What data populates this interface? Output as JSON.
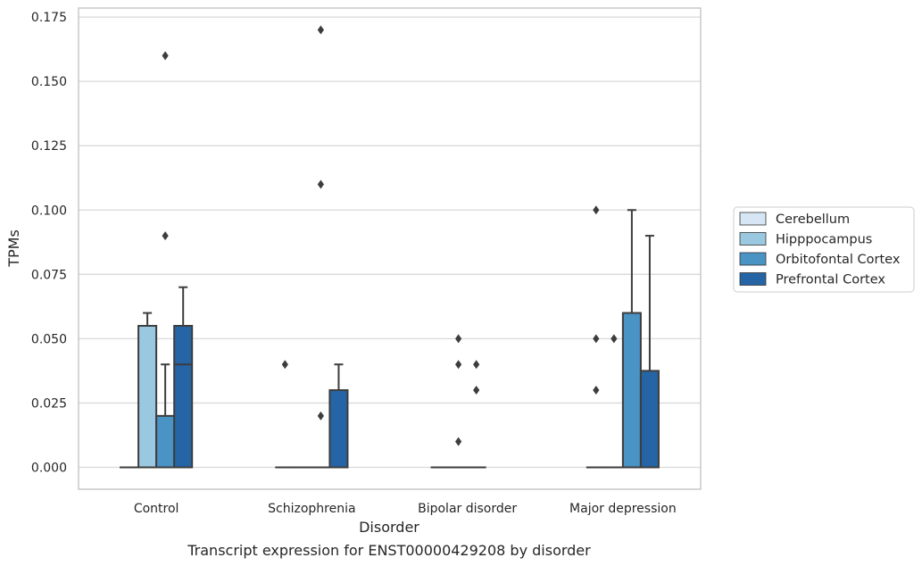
{
  "chart_data": {
    "type": "boxplot",
    "title": "",
    "xlabel": "Disorder",
    "ylabel": "TPMs",
    "caption": "Transcript expression for ENST00000429208 by disorder",
    "ylim": [
      -0.0085,
      0.1785
    ],
    "yticks": [
      "0.000",
      "0.025",
      "0.050",
      "0.075",
      "0.100",
      "0.125",
      "0.150",
      "0.175"
    ],
    "categories": [
      "Control",
      "Schizophrenia",
      "Bipolar disorder",
      "Major depression"
    ],
    "grid": "horizontal",
    "legend_position": "right",
    "series": [
      {
        "name": "Cerebellum",
        "color": "#d6e6f4",
        "boxes": [
          {
            "q1": 0,
            "median": 0,
            "q3": 0,
            "whisker_low": 0,
            "whisker_high": 0,
            "outliers": []
          },
          {
            "q1": 0,
            "median": 0,
            "q3": 0,
            "whisker_low": 0,
            "whisker_high": 0,
            "outliers": [
              0.04
            ]
          },
          {
            "q1": 0,
            "median": 0,
            "q3": 0,
            "whisker_low": 0,
            "whisker_high": 0,
            "outliers": []
          },
          {
            "q1": 0,
            "median": 0,
            "q3": 0,
            "whisker_low": 0,
            "whisker_high": 0,
            "outliers": [
              0.03,
              0.05,
              0.1
            ]
          }
        ]
      },
      {
        "name": "Hipppocampus",
        "color": "#9ac8e0",
        "boxes": [
          {
            "q1": 0,
            "median": 0,
            "q3": 0.055,
            "whisker_low": 0,
            "whisker_high": 0.06,
            "outliers": []
          },
          {
            "q1": 0,
            "median": 0,
            "q3": 0,
            "whisker_low": 0,
            "whisker_high": 0,
            "outliers": []
          },
          {
            "q1": 0,
            "median": 0,
            "q3": 0,
            "whisker_low": 0,
            "whisker_high": 0,
            "outliers": [
              0.01,
              0.04,
              0.05
            ]
          },
          {
            "q1": 0,
            "median": 0,
            "q3": 0,
            "whisker_low": 0,
            "whisker_high": 0,
            "outliers": [
              0.05
            ]
          }
        ]
      },
      {
        "name": "Orbitofontal Cortex",
        "color": "#4a93c5",
        "boxes": [
          {
            "q1": 0,
            "median": 0,
            "q3": 0.02,
            "whisker_low": 0,
            "whisker_high": 0.04,
            "outliers": [
              0.09,
              0.16
            ]
          },
          {
            "q1": 0,
            "median": 0,
            "q3": 0,
            "whisker_low": 0,
            "whisker_high": 0,
            "outliers": [
              0.02,
              0.11,
              0.17
            ]
          },
          {
            "q1": 0,
            "median": 0,
            "q3": 0,
            "whisker_low": 0,
            "whisker_high": 0,
            "outliers": [
              0.03,
              0.04
            ]
          },
          {
            "q1": 0,
            "median": 0,
            "q3": 0.06,
            "whisker_low": 0,
            "whisker_high": 0.1,
            "outliers": []
          }
        ]
      },
      {
        "name": "Prefrontal Cortex",
        "color": "#2565a6",
        "boxes": [
          {
            "q1": 0,
            "median": 0.04,
            "q3": 0.055,
            "whisker_low": 0,
            "whisker_high": 0.07,
            "outliers": []
          },
          {
            "q1": 0,
            "median": 0,
            "q3": 0.03,
            "whisker_low": 0,
            "whisker_high": 0.04,
            "outliers": []
          },
          null,
          {
            "q1": 0,
            "median": 0,
            "q3": 0.0375,
            "whisker_low": 0,
            "whisker_high": 0.09,
            "outliers": []
          }
        ]
      }
    ]
  }
}
